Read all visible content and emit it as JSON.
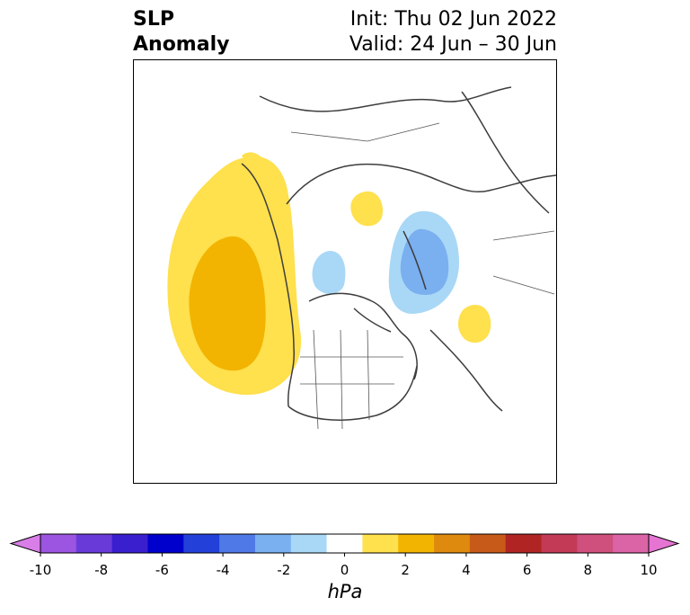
{
  "title": {
    "left_line1": "SLP",
    "left_line2": "Anomaly",
    "init": "Init: Thu 02 Jun 2022",
    "valid": "Valid: 24 Jun – 30 Jun"
  },
  "colorbar": {
    "unit": "hPa",
    "ticks": [
      "-10",
      "-8",
      "-6",
      "-4",
      "-2",
      "0",
      "2",
      "4",
      "6",
      "8",
      "10"
    ],
    "colors": [
      "#d97ee8",
      "#9b55e0",
      "#6a3ad8",
      "#3a1fcf",
      "#0000cc",
      "#2340d8",
      "#4f79e6",
      "#7aaff0",
      "#a9d8f6",
      "#ffffff",
      "#ffe04d",
      "#f2b400",
      "#de8a0e",
      "#c75a18",
      "#b02424",
      "#c23a56",
      "#cf4f7d",
      "#da64a6",
      "#e674d2"
    ],
    "extend": "both"
  },
  "map": {
    "projection": "north-polar-stereographic",
    "features": [
      {
        "name": "anomaly-positive-west-pacific-coast",
        "level": "1 to 2 hPa"
      },
      {
        "name": "anomaly-positive-core-west-coast",
        "level": "2 to 4 hPa"
      },
      {
        "name": "anomaly-negative-scandinavia-barents",
        "level": "-2 to -1 hPa"
      },
      {
        "name": "anomaly-negative-core-scandinavia",
        "level": "-3 to -2 hPa"
      },
      {
        "name": "anomaly-negative-beaufort",
        "level": "-2 to -1 hPa"
      },
      {
        "name": "anomaly-positive-east-siberia",
        "level": "1 to 2 hPa"
      },
      {
        "name": "anomaly-positive-north-atlantic",
        "level": "1 to 2 hPa"
      }
    ]
  }
}
